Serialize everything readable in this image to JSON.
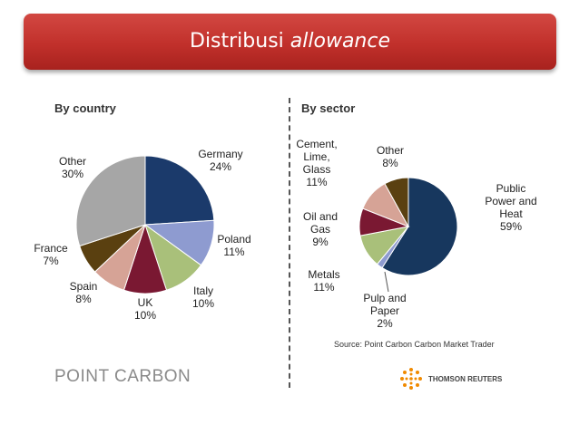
{
  "header": {
    "title_plain": "Distribusi ",
    "title_italic": "allowance"
  },
  "footer": {
    "source": "Source: Point Carbon Carbon Market Trader",
    "point_carbon_logo": "POINT CARBON",
    "thomson_reuters_logo": "THOMSON REUTERS"
  },
  "chart_data": [
    {
      "type": "pie",
      "title": "By country",
      "slices": [
        {
          "lines": [
            "Germany",
            "24%"
          ],
          "value": 24,
          "color": "#1b3a6b"
        },
        {
          "lines": [
            "Poland",
            "11%"
          ],
          "value": 11,
          "color": "#8e9bd0"
        },
        {
          "lines": [
            "Italy",
            "10%"
          ],
          "value": 10,
          "color": "#a9c07a"
        },
        {
          "lines": [
            "UK",
            "10%"
          ],
          "value": 10,
          "color": "#7a1832"
        },
        {
          "lines": [
            "Spain",
            "8%"
          ],
          "value": 8,
          "color": "#d6a396"
        },
        {
          "lines": [
            "France",
            "7%"
          ],
          "value": 7,
          "color": "#5a4010"
        },
        {
          "lines": [
            "Other",
            "30%"
          ],
          "value": 30,
          "color": "#a6a6a6"
        }
      ]
    },
    {
      "type": "pie",
      "title": "By sector",
      "slices": [
        {
          "lines": [
            "Public",
            "Power and",
            "Heat",
            "59%"
          ],
          "value": 59,
          "color": "#17375e"
        },
        {
          "lines": [
            "Pulp and",
            "Paper",
            "2%"
          ],
          "value": 2,
          "color": "#8e9bd0"
        },
        {
          "lines": [
            "Metals",
            "11%"
          ],
          "value": 11,
          "color": "#a9c07a"
        },
        {
          "lines": [
            "Oil and",
            "Gas",
            "9%"
          ],
          "value": 9,
          "color": "#7a1832"
        },
        {
          "lines": [
            "Cement,",
            "Lime,",
            "Glass",
            "11%"
          ],
          "value": 11,
          "color": "#d6a396"
        },
        {
          "lines": [
            "Other",
            "8%"
          ],
          "value": 8,
          "color": "#5a4010"
        }
      ]
    }
  ]
}
